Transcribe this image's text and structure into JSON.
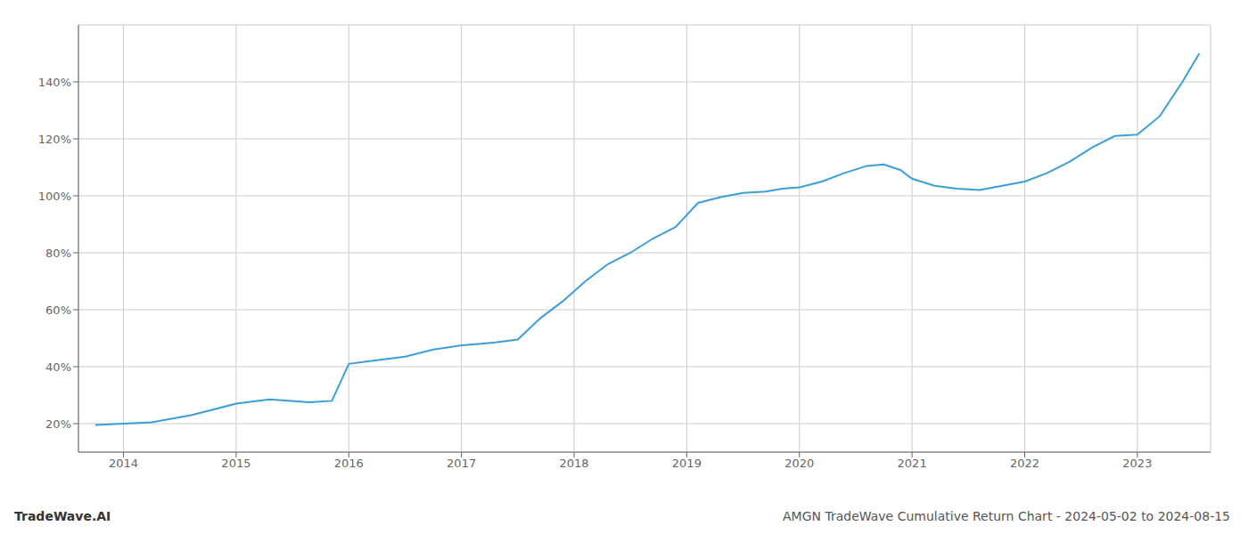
{
  "chart_data": {
    "type": "line",
    "title": "AMGN TradeWave Cumulative Return Chart - 2024-05-02 to 2024-08-15",
    "annotations": [
      "TradeWave.AI"
    ],
    "color": "#3a9fd8",
    "grid": true,
    "x": [
      2013.75,
      2014.0,
      2014.25,
      2014.6,
      2015.0,
      2015.3,
      2015.65,
      2015.85,
      2016.0,
      2016.2,
      2016.5,
      2016.75,
      2017.0,
      2017.15,
      2017.3,
      2017.5,
      2017.7,
      2017.9,
      2018.1,
      2018.3,
      2018.5,
      2018.7,
      2018.9,
      2019.1,
      2019.3,
      2019.5,
      2019.7,
      2019.85,
      2020.0,
      2020.2,
      2020.4,
      2020.6,
      2020.75,
      2020.9,
      2021.0,
      2021.2,
      2021.4,
      2021.6,
      2021.8,
      2022.0,
      2022.2,
      2022.4,
      2022.6,
      2022.8,
      2023.0,
      2023.2,
      2023.4,
      2023.55
    ],
    "values": [
      19.5,
      20.0,
      20.5,
      23.0,
      27.0,
      28.5,
      27.5,
      28.0,
      41.0,
      42.0,
      43.5,
      46.0,
      47.5,
      48.0,
      48.5,
      49.5,
      57.0,
      63.0,
      70.0,
      76.0,
      80.0,
      85.0,
      89.0,
      97.5,
      99.5,
      101.0,
      101.5,
      102.5,
      103.0,
      105.0,
      108.0,
      110.5,
      111.0,
      109.0,
      106.0,
      103.5,
      102.5,
      102.0,
      103.5,
      105.0,
      108.0,
      112.0,
      117.0,
      121.0,
      121.5,
      128.0,
      140.0,
      150.0
    ],
    "xlim": [
      2013.6,
      2023.65
    ],
    "xticks": [
      2014,
      2015,
      2016,
      2017,
      2018,
      2019,
      2020,
      2021,
      2022,
      2023
    ],
    "ylim": [
      10,
      160
    ],
    "yticks": [
      {
        "value": 20,
        "label": "20%"
      },
      {
        "value": 40,
        "label": "40%"
      },
      {
        "value": 60,
        "label": "60%"
      },
      {
        "value": 80,
        "label": "80%"
      },
      {
        "value": 100,
        "label": "100%"
      },
      {
        "value": 120,
        "label": "120%"
      },
      {
        "value": 140,
        "label": "140%"
      }
    ]
  }
}
